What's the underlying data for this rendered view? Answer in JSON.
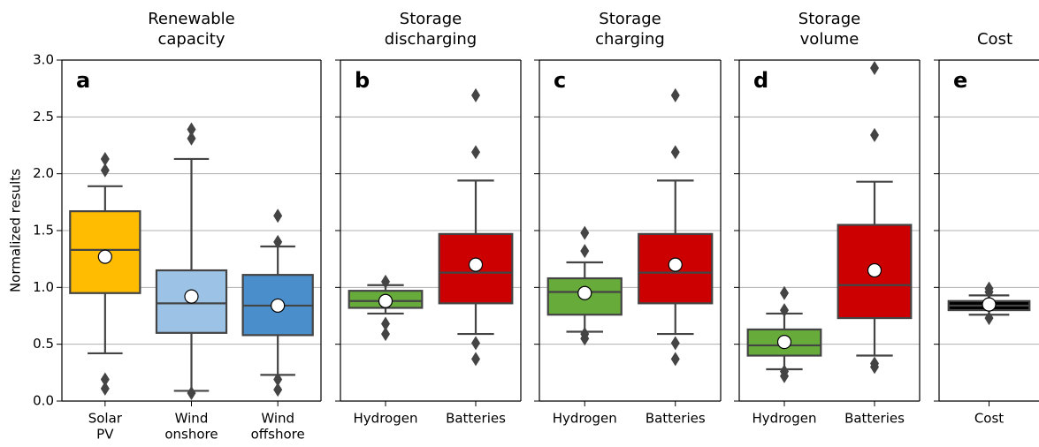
{
  "chart_data": [
    {
      "type": "box",
      "title": [
        "Renewable",
        "capacity"
      ],
      "label": "a",
      "ylabel": "Normalized results",
      "categories": [
        [
          "Solar",
          "PV"
        ],
        [
          "Wind",
          "onshore"
        ],
        [
          "Wind",
          "offshore"
        ]
      ],
      "colors": [
        "#ffbc00",
        "#9cc3e5",
        "#4a8fcc"
      ],
      "stats": [
        {
          "low": 0.42,
          "q1": 0.95,
          "median": 1.33,
          "q3": 1.67,
          "high": 1.89,
          "mean": 1.27,
          "outliers": [
            2.13,
            2.03,
            0.19,
            0.11
          ]
        },
        {
          "low": 0.09,
          "q1": 0.6,
          "median": 0.86,
          "q3": 1.15,
          "high": 2.13,
          "mean": 0.92,
          "outliers": [
            2.39,
            2.31,
            0.07
          ]
        },
        {
          "low": 0.23,
          "q1": 0.58,
          "median": 0.84,
          "q3": 1.11,
          "high": 1.36,
          "mean": 0.84,
          "outliers": [
            1.63,
            1.4,
            0.19,
            0.1
          ]
        }
      ],
      "ylim": [
        0,
        3
      ],
      "yticks": [
        {
          "value": 0,
          "label": "0.0"
        },
        {
          "value": 0.5,
          "label": "0.5"
        },
        {
          "value": 1,
          "label": "1.0"
        },
        {
          "value": 1.5,
          "label": "1.5"
        },
        {
          "value": 2,
          "label": "2.0"
        },
        {
          "value": 2.5,
          "label": "2.5"
        },
        {
          "value": 3,
          "label": "3.0"
        }
      ],
      "grid": true
    },
    {
      "type": "box",
      "title": [
        "Storage",
        "discharging"
      ],
      "label": "b",
      "categories": [
        [
          "Hydrogen"
        ],
        [
          "Batteries"
        ]
      ],
      "colors": [
        "#67ab3b",
        "#cc0000"
      ],
      "stats": [
        {
          "low": 0.77,
          "q1": 0.82,
          "median": 0.88,
          "q3": 0.97,
          "high": 1.02,
          "mean": 0.88,
          "outliers": [
            1.05,
            0.68,
            0.59
          ]
        },
        {
          "low": 0.59,
          "q1": 0.86,
          "median": 1.13,
          "q3": 1.47,
          "high": 1.94,
          "mean": 1.2,
          "outliers": [
            2.69,
            2.19,
            0.51,
            0.37
          ]
        }
      ],
      "ylim": [
        0,
        3
      ],
      "yticks": [
        0,
        0.5,
        1,
        1.5,
        2,
        2.5,
        3
      ],
      "grid": true
    },
    {
      "type": "box",
      "title": [
        "Storage",
        "charging"
      ],
      "label": "c",
      "categories": [
        [
          "Hydrogen"
        ],
        [
          "Batteries"
        ]
      ],
      "colors": [
        "#67ab3b",
        "#cc0000"
      ],
      "stats": [
        {
          "low": 0.61,
          "q1": 0.76,
          "median": 0.96,
          "q3": 1.08,
          "high": 1.22,
          "mean": 0.95,
          "outliers": [
            1.48,
            1.32,
            0.59,
            0.55
          ]
        },
        {
          "low": 0.59,
          "q1": 0.86,
          "median": 1.13,
          "q3": 1.47,
          "high": 1.94,
          "mean": 1.2,
          "outliers": [
            2.69,
            2.19,
            0.51,
            0.37
          ]
        }
      ],
      "ylim": [
        0,
        3
      ],
      "yticks": [
        0,
        0.5,
        1,
        1.5,
        2,
        2.5,
        3
      ],
      "grid": true
    },
    {
      "type": "box",
      "title": [
        "Storage",
        "volume"
      ],
      "label": "d",
      "categories": [
        [
          "Hydrogen"
        ],
        [
          "Batteries"
        ]
      ],
      "colors": [
        "#67ab3b",
        "#cc0000"
      ],
      "stats": [
        {
          "low": 0.28,
          "q1": 0.4,
          "median": 0.49,
          "q3": 0.63,
          "high": 0.77,
          "mean": 0.52,
          "outliers": [
            0.95,
            0.8,
            0.26,
            0.22
          ]
        },
        {
          "low": 0.4,
          "q1": 0.73,
          "median": 1.02,
          "q3": 1.55,
          "high": 1.93,
          "mean": 1.15,
          "outliers": [
            2.93,
            2.34,
            0.33,
            0.3
          ]
        }
      ],
      "ylim": [
        0,
        3
      ],
      "yticks": [
        0,
        0.5,
        1,
        1.5,
        2,
        2.5,
        3
      ],
      "grid": true
    },
    {
      "type": "box",
      "title": [
        "Cost"
      ],
      "label": "e",
      "categories": [
        [
          "Cost"
        ]
      ],
      "colors": [
        "#000000"
      ],
      "stats": [
        {
          "low": 0.76,
          "q1": 0.8,
          "median": 0.84,
          "q3": 0.88,
          "high": 0.93,
          "mean": 0.85,
          "outliers": [
            0.99,
            0.96,
            0.73
          ]
        }
      ],
      "ylim": [
        0,
        3
      ],
      "yticks": [
        0,
        0.5,
        1,
        1.5,
        2,
        2.5,
        3
      ],
      "grid": true
    }
  ]
}
